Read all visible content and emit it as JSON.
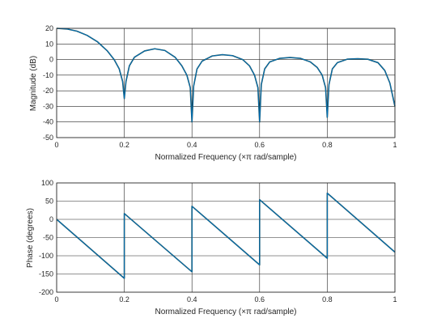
{
  "colors": {
    "background": "#ffffff",
    "axes": "#262626",
    "grid": "#262626",
    "line": "#0072BD",
    "line_dark": "#1f4a4a"
  },
  "chart_data": [
    {
      "type": "line",
      "title": "",
      "xlabel": "Normalized Frequency (×π rad/sample)",
      "ylabel": "Magnitude (dB)",
      "xlim": [
        0,
        1
      ],
      "ylim": [
        -50,
        20
      ],
      "x_ticks": [
        0,
        0.2,
        0.4,
        0.6,
        0.8,
        1
      ],
      "x_tick_labels": [
        "0",
        "0.2",
        "0.4",
        "0.6",
        "0.8",
        "1"
      ],
      "y_ticks": [
        -50,
        -40,
        -30,
        -20,
        -10,
        0,
        10,
        20
      ],
      "y_tick_labels": [
        "-50",
        "-40",
        "-30",
        "-20",
        "-10",
        "0",
        "10",
        "20"
      ],
      "grid": true,
      "series": [
        {
          "x": [
            0,
            0.03,
            0.06,
            0.09,
            0.12,
            0.15,
            0.17,
            0.185,
            0.195,
            0.2,
            0.205,
            0.215,
            0.23,
            0.26,
            0.29,
            0.32,
            0.35,
            0.37,
            0.385,
            0.395,
            0.4,
            0.405,
            0.415,
            0.43,
            0.46,
            0.49,
            0.52,
            0.55,
            0.57,
            0.585,
            0.595,
            0.6,
            0.605,
            0.615,
            0.63,
            0.66,
            0.69,
            0.72,
            0.75,
            0.77,
            0.785,
            0.795,
            0.8,
            0.805,
            0.815,
            0.83,
            0.86,
            0.89,
            0.92,
            0.95,
            0.97,
            0.985,
            1.0
          ],
          "values": [
            20,
            19.6,
            18.2,
            15.5,
            11.5,
            5.5,
            0,
            -6,
            -14,
            -25,
            -14,
            -4,
            1.5,
            5.5,
            6.9,
            5.8,
            1.5,
            -4,
            -10,
            -18,
            -40,
            -17,
            -6,
            -1,
            2.3,
            3.1,
            2.5,
            0,
            -4,
            -10,
            -18,
            -40,
            -16,
            -6,
            -1.5,
            0.8,
            1.3,
            0.8,
            -1.5,
            -5,
            -10,
            -18,
            -37,
            -16,
            -6,
            -2,
            0.3,
            0.5,
            0.2,
            -2,
            -7,
            -15,
            -30
          ]
        }
      ]
    },
    {
      "type": "line",
      "title": "",
      "xlabel": "Normalized Frequency (×π rad/sample)",
      "ylabel": "Phase (degrees)",
      "xlim": [
        0,
        1
      ],
      "ylim": [
        -200,
        100
      ],
      "x_ticks": [
        0,
        0.2,
        0.4,
        0.6,
        0.8,
        1
      ],
      "x_tick_labels": [
        "0",
        "0.2",
        "0.4",
        "0.6",
        "0.8",
        "1"
      ],
      "y_ticks": [
        -200,
        -150,
        -100,
        -50,
        0,
        50,
        100
      ],
      "y_tick_labels": [
        "-200",
        "-150",
        "-100",
        "-50",
        "0",
        "50",
        "100"
      ],
      "grid": true,
      "series": [
        {
          "x": [
            0,
            0.2,
            0.2,
            0.4,
            0.4,
            0.6,
            0.6,
            0.8,
            0.8,
            1.0
          ],
          "values": [
            0,
            -162,
            16,
            -144,
            36,
            -125,
            54,
            -107,
            72,
            -90
          ]
        }
      ]
    }
  ]
}
